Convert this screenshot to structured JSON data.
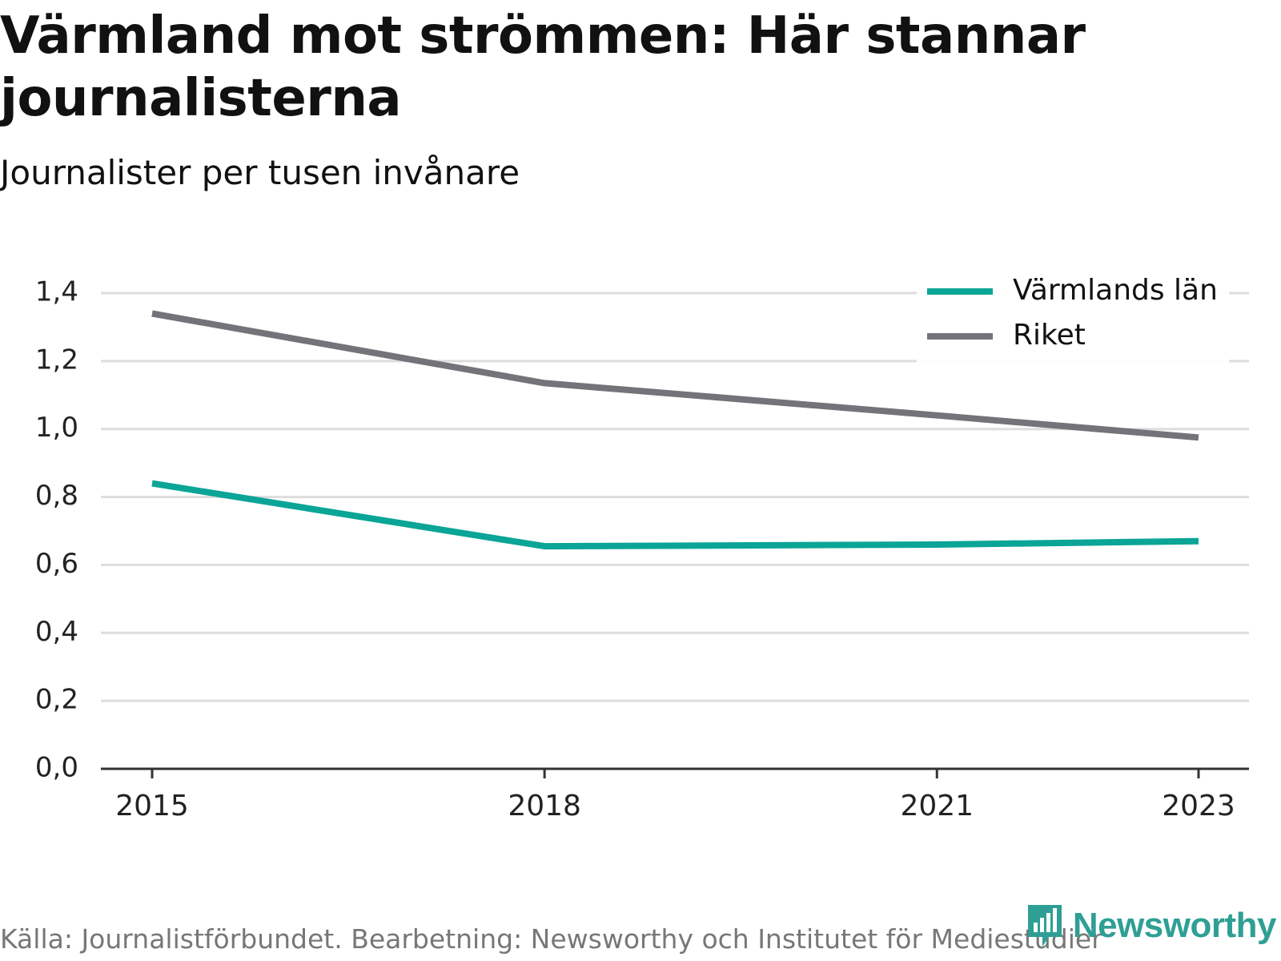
{
  "title": "Värmland mot strömmen: Här stannar journalisterna",
  "subtitle": "Journalister per tusen invånare",
  "source": "Källa: Journalistförbundet. Bearbetning: Newsworthy och Institutet för Mediestudier",
  "brand": "Newsworthy",
  "colors": {
    "varmland": "#0aa596",
    "riket": "#74737a",
    "grid": "#dddddd",
    "axis": "#333333",
    "brand": "#2f9f95"
  },
  "chart_data": {
    "type": "line",
    "x": [
      2015,
      2018,
      2021,
      2023
    ],
    "x_tick_labels": [
      "2015",
      "2018",
      "2021",
      "2023"
    ],
    "ylim": [
      0,
      1.4
    ],
    "y_ticks": [
      0,
      0.2,
      0.4,
      0.6,
      0.8,
      1.0,
      1.2,
      1.4
    ],
    "y_tick_labels": [
      "0,0",
      "0,2",
      "0,4",
      "0,6",
      "0,8",
      "1,0",
      "1,2",
      "1,4"
    ],
    "grid": true,
    "legend_position": "top-right",
    "series": [
      {
        "name": "Värmlands län",
        "color": "#0aa596",
        "values": [
          0.84,
          0.655,
          0.66,
          0.67
        ]
      },
      {
        "name": "Riket",
        "color": "#74737a",
        "values": [
          1.34,
          1.135,
          1.04,
          0.975
        ]
      }
    ]
  }
}
